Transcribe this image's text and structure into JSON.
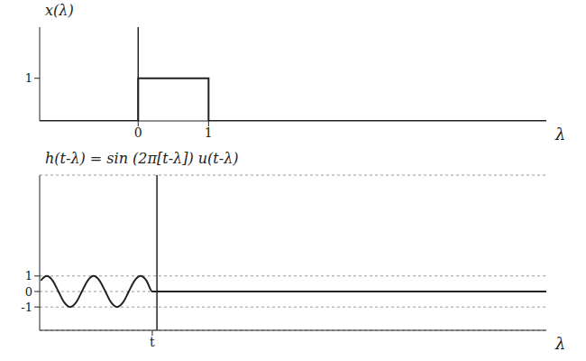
{
  "chart_data": [
    {
      "type": "line",
      "ylabel": "x(λ)",
      "xlabel": "λ",
      "x": [
        -1.4,
        0,
        0,
        1,
        1,
        5.8
      ],
      "values": [
        0,
        0,
        1,
        1,
        0,
        0
      ],
      "xlim": [
        -1.4,
        5.8
      ],
      "xticks": [
        0,
        1
      ],
      "ylim": [
        0,
        2.2
      ],
      "yticks": [
        1
      ],
      "color": "#222222",
      "marker": "none",
      "line_style": "solid",
      "grid": false
    },
    {
      "type": "line",
      "ylabel": "h(t-λ) = sin (2π[t-λ]) u(t-λ)",
      "xlabel": "λ",
      "x": [
        -2.475,
        -2.35,
        -2.225,
        -2.1,
        -1.975,
        -1.85,
        -1.725,
        -1.6,
        -1.475,
        -1.35,
        -1.225,
        -1.1,
        -0.975,
        -0.85,
        -0.725,
        -0.6,
        -0.475,
        -0.35,
        -0.225,
        -0.1,
        8.3
      ],
      "values": [
        0.71,
        1,
        0.71,
        0,
        -0.71,
        -1,
        -0.71,
        0,
        0.71,
        1,
        0.71,
        0,
        -0.71,
        -1,
        -0.71,
        0,
        0.71,
        1,
        0.71,
        0,
        0
      ],
      "xlim": [
        -2.5,
        8.3
      ],
      "xticks": [
        {
          "value": -0.1,
          "label": "t"
        }
      ],
      "ylim": [
        -2.5,
        7.5
      ],
      "yticks": [
        -1,
        0,
        1
      ],
      "color": "#222222",
      "marker": "none",
      "line_style": "solid",
      "grid": true
    }
  ]
}
